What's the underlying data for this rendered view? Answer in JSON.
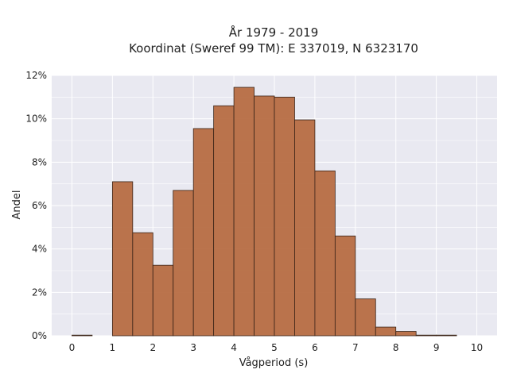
{
  "chart_data": {
    "type": "bar",
    "title_line1": "År 1979 - 2019",
    "title_line2": "Koordinat (Sweref 99 TM): E 337019, N 6323170",
    "xlabel": "Vågperiod (s)",
    "ylabel": "Andel",
    "xlim": [
      -0.5,
      10.5
    ],
    "ylim": [
      0,
      12
    ],
    "x_ticks": [
      0,
      1,
      2,
      3,
      4,
      5,
      6,
      7,
      8,
      9,
      10
    ],
    "x_tick_labels": [
      "0",
      "1",
      "2",
      "3",
      "4",
      "5",
      "6",
      "7",
      "8",
      "9",
      "10"
    ],
    "y_ticks": [
      0,
      2,
      4,
      6,
      8,
      10,
      12
    ],
    "y_tick_labels": [
      "0%",
      "2%",
      "4%",
      "6%",
      "8%",
      "10%",
      "12%"
    ],
    "bin_width": 0.5,
    "bins": [
      {
        "start": 0.0,
        "value": 0.03
      },
      {
        "start": 0.5,
        "value": 0.0
      },
      {
        "start": 1.0,
        "value": 7.1
      },
      {
        "start": 1.5,
        "value": 4.75
      },
      {
        "start": 2.0,
        "value": 3.25
      },
      {
        "start": 2.5,
        "value": 6.7
      },
      {
        "start": 3.0,
        "value": 9.55
      },
      {
        "start": 3.5,
        "value": 10.6
      },
      {
        "start": 4.0,
        "value": 11.45
      },
      {
        "start": 4.5,
        "value": 11.05
      },
      {
        "start": 5.0,
        "value": 11.0
      },
      {
        "start": 5.5,
        "value": 9.95
      },
      {
        "start": 6.0,
        "value": 7.6
      },
      {
        "start": 6.5,
        "value": 4.6
      },
      {
        "start": 7.0,
        "value": 1.7
      },
      {
        "start": 7.5,
        "value": 0.4
      },
      {
        "start": 8.0,
        "value": 0.2
      },
      {
        "start": 8.5,
        "value": 0.03
      },
      {
        "start": 9.0,
        "value": 0.03
      }
    ],
    "grid": true,
    "colors": {
      "bar_fill": "#b5683e",
      "bar_edge": "#3a2418",
      "plot_background": "#e9e9f1",
      "grid": "#ffffff"
    }
  }
}
